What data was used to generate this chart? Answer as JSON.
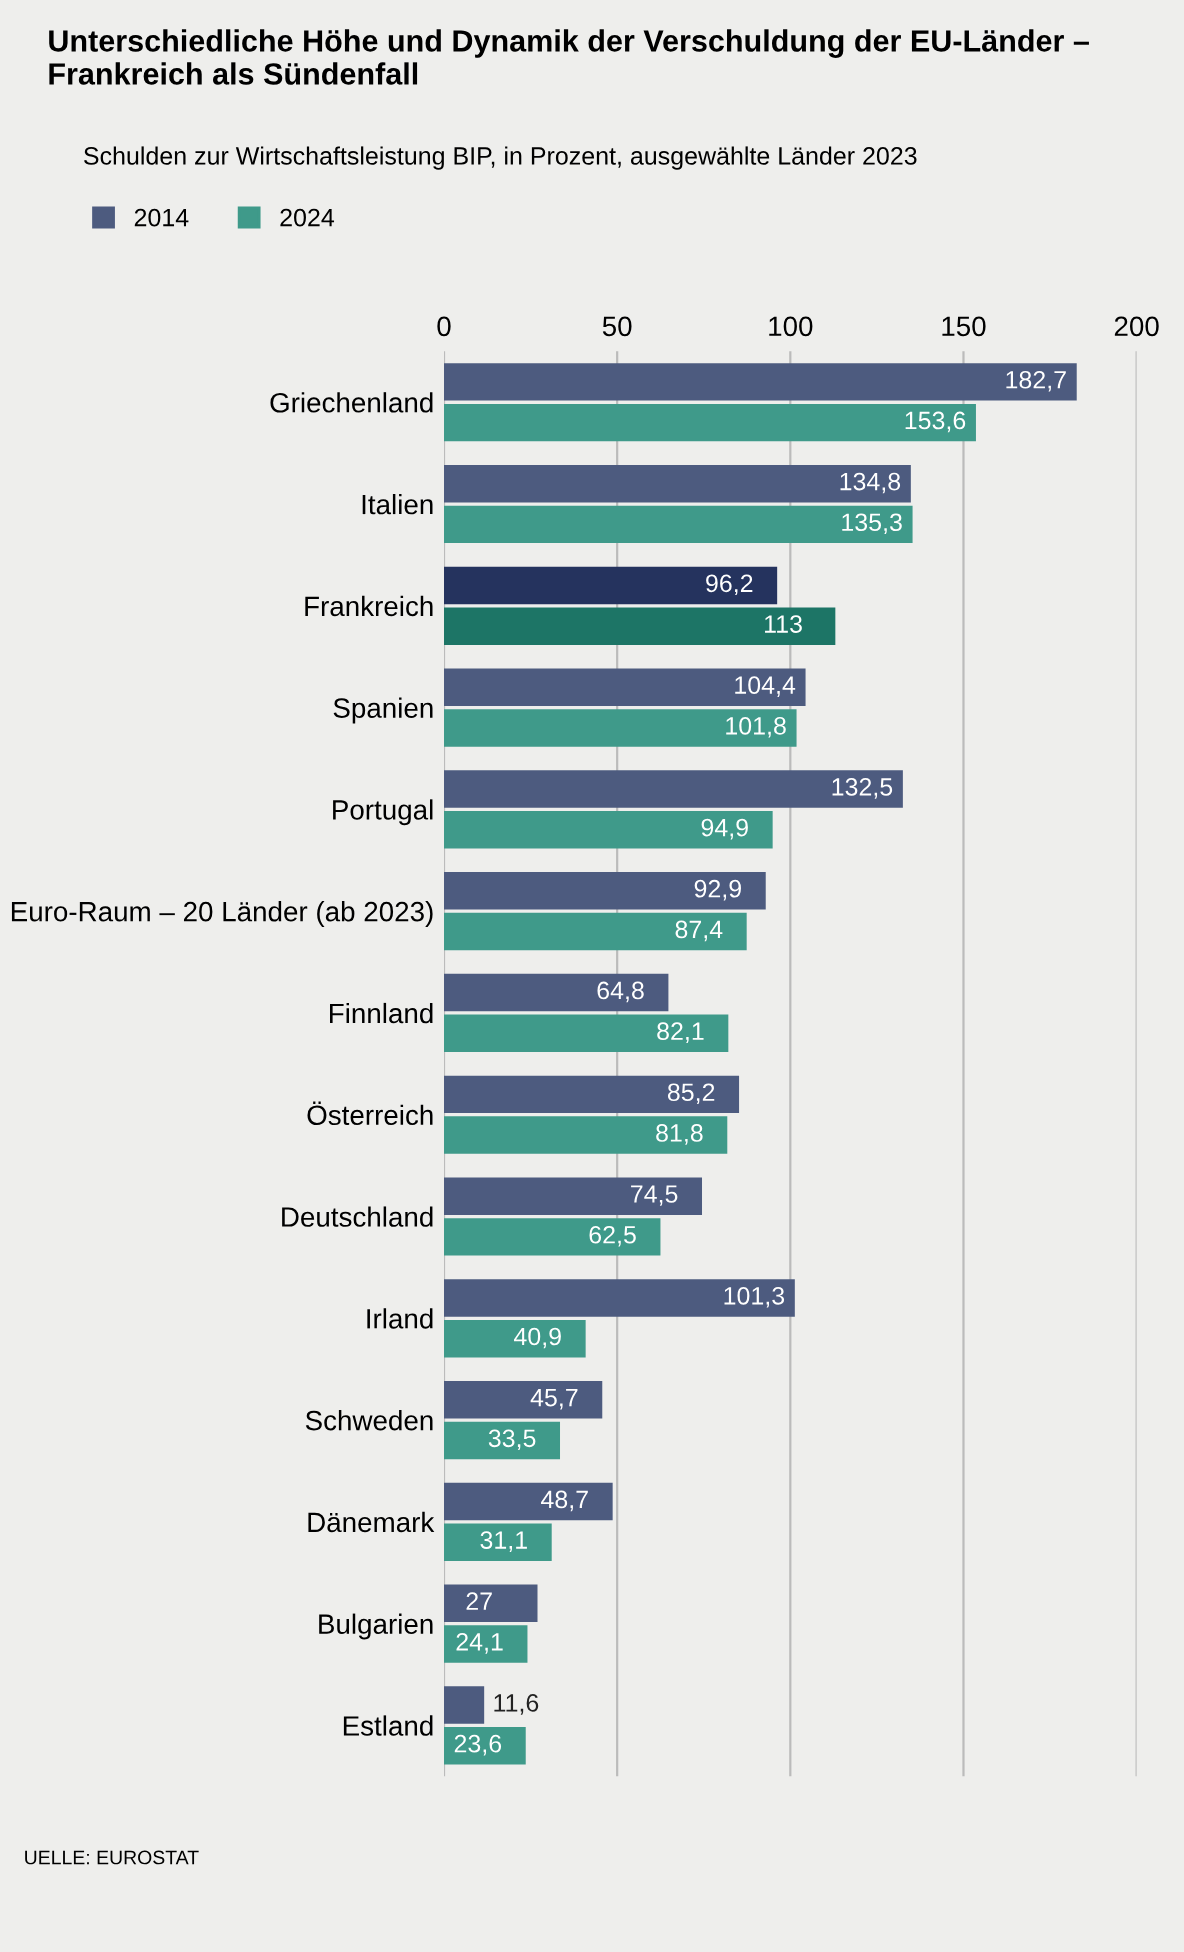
{
  "chart_data": {
    "type": "bar",
    "orientation": "horizontal",
    "title": "Unterschiedliche Höhe und Dynamik der Verschuldung der EU-Länder –\nFrankreich als Sündenfall",
    "subtitle": "Schulden zur Wirtschaftsleistung BIP, in Prozent, ausgewählte Länder 2023",
    "categories": [
      "Griechenland",
      "Italien",
      "Frankreich",
      "Spanien",
      "Portugal",
      "Euro-Raum – 20 Länder (ab 2023)",
      "Finnland",
      "Österreich",
      "Deutschland",
      "Irland",
      "Schweden",
      "Dänemark",
      "Bulgarien",
      "Estland"
    ],
    "series": [
      {
        "name": "2014",
        "color": "#4d5b7f",
        "colors": [
          "#4d5b7f",
          "#4d5b7f",
          "#25335e",
          "#4d5b7f",
          "#4d5b7f",
          "#4d5b7f",
          "#4d5b7f",
          "#4d5b7f",
          "#4d5b7f",
          "#4d5b7f",
          "#4d5b7f",
          "#4d5b7f",
          "#4d5b7f",
          "#4d5b7f"
        ],
        "values": [
          182.7,
          134.8,
          96.2,
          104.4,
          132.5,
          92.9,
          64.8,
          85.2,
          74.5,
          101.3,
          45.7,
          48.7,
          27,
          11.6
        ],
        "value_labels": [
          "182,7",
          "134,8",
          "96,2",
          "104,4",
          "132,5",
          "92,9",
          "64,8",
          "85,2",
          "74,5",
          "101,3",
          "45,7",
          "48,7",
          "27",
          "11,6"
        ]
      },
      {
        "name": "2024",
        "color": "#3f9a8a",
        "colors": [
          "#3f9a8a",
          "#3f9a8a",
          "#1d7566",
          "#3f9a8a",
          "#3f9a8a",
          "#3f9a8a",
          "#3f9a8a",
          "#3f9a8a",
          "#3f9a8a",
          "#3f9a8a",
          "#3f9a8a",
          "#3f9a8a",
          "#3f9a8a",
          "#3f9a8a"
        ],
        "values": [
          153.6,
          135.3,
          113,
          101.8,
          94.9,
          87.4,
          82.1,
          81.8,
          62.5,
          40.9,
          33.5,
          31.1,
          24.1,
          23.6
        ],
        "value_labels": [
          "153,6",
          "135,3",
          "113",
          "101,8",
          "94,9",
          "87,4",
          "82,1",
          "81,8",
          "62,5",
          "40,9",
          "33,5",
          "31,1",
          "24,1",
          "23,6"
        ]
      }
    ],
    "xlim": [
      0,
      200
    ],
    "xticks": [
      0,
      50,
      100,
      150,
      200
    ],
    "grid": "x",
    "legend": "top left",
    "annotations": [
      "UELLE: EUROSTAT"
    ]
  }
}
